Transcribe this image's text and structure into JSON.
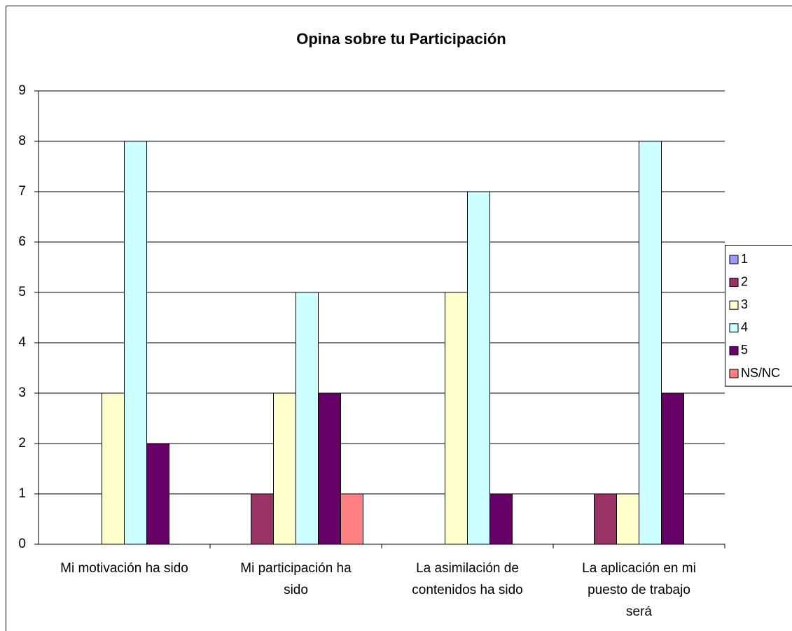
{
  "chart_data": {
    "type": "bar",
    "title": "Opina sobre tu Participación",
    "categories": [
      [
        "Mi motivación ha sido"
      ],
      [
        "Mi participación ha",
        "sido"
      ],
      [
        "La asimilación de",
        "contenidos ha sido"
      ],
      [
        "La aplicación en mi",
        "puesto de trabajo",
        "será"
      ]
    ],
    "series": [
      {
        "name": "1",
        "color": "#9999ff",
        "values": [
          0,
          0,
          0,
          0
        ]
      },
      {
        "name": "2",
        "color": "#993366",
        "values": [
          0,
          1,
          0,
          1
        ]
      },
      {
        "name": "3",
        "color": "#ffffcc",
        "values": [
          3,
          3,
          5,
          1
        ]
      },
      {
        "name": "4",
        "color": "#ccffff",
        "values": [
          8,
          5,
          7,
          8
        ]
      },
      {
        "name": "5",
        "color": "#660066",
        "values": [
          2,
          3,
          1,
          3
        ]
      },
      {
        "name": "NS/NC",
        "color": "#ff8080",
        "values": [
          0,
          1,
          0,
          0
        ]
      }
    ],
    "ylim": [
      0,
      9
    ],
    "yticks": [
      0,
      1,
      2,
      3,
      4,
      5,
      6,
      7,
      8,
      9
    ],
    "grid": true,
    "legend": "right"
  }
}
